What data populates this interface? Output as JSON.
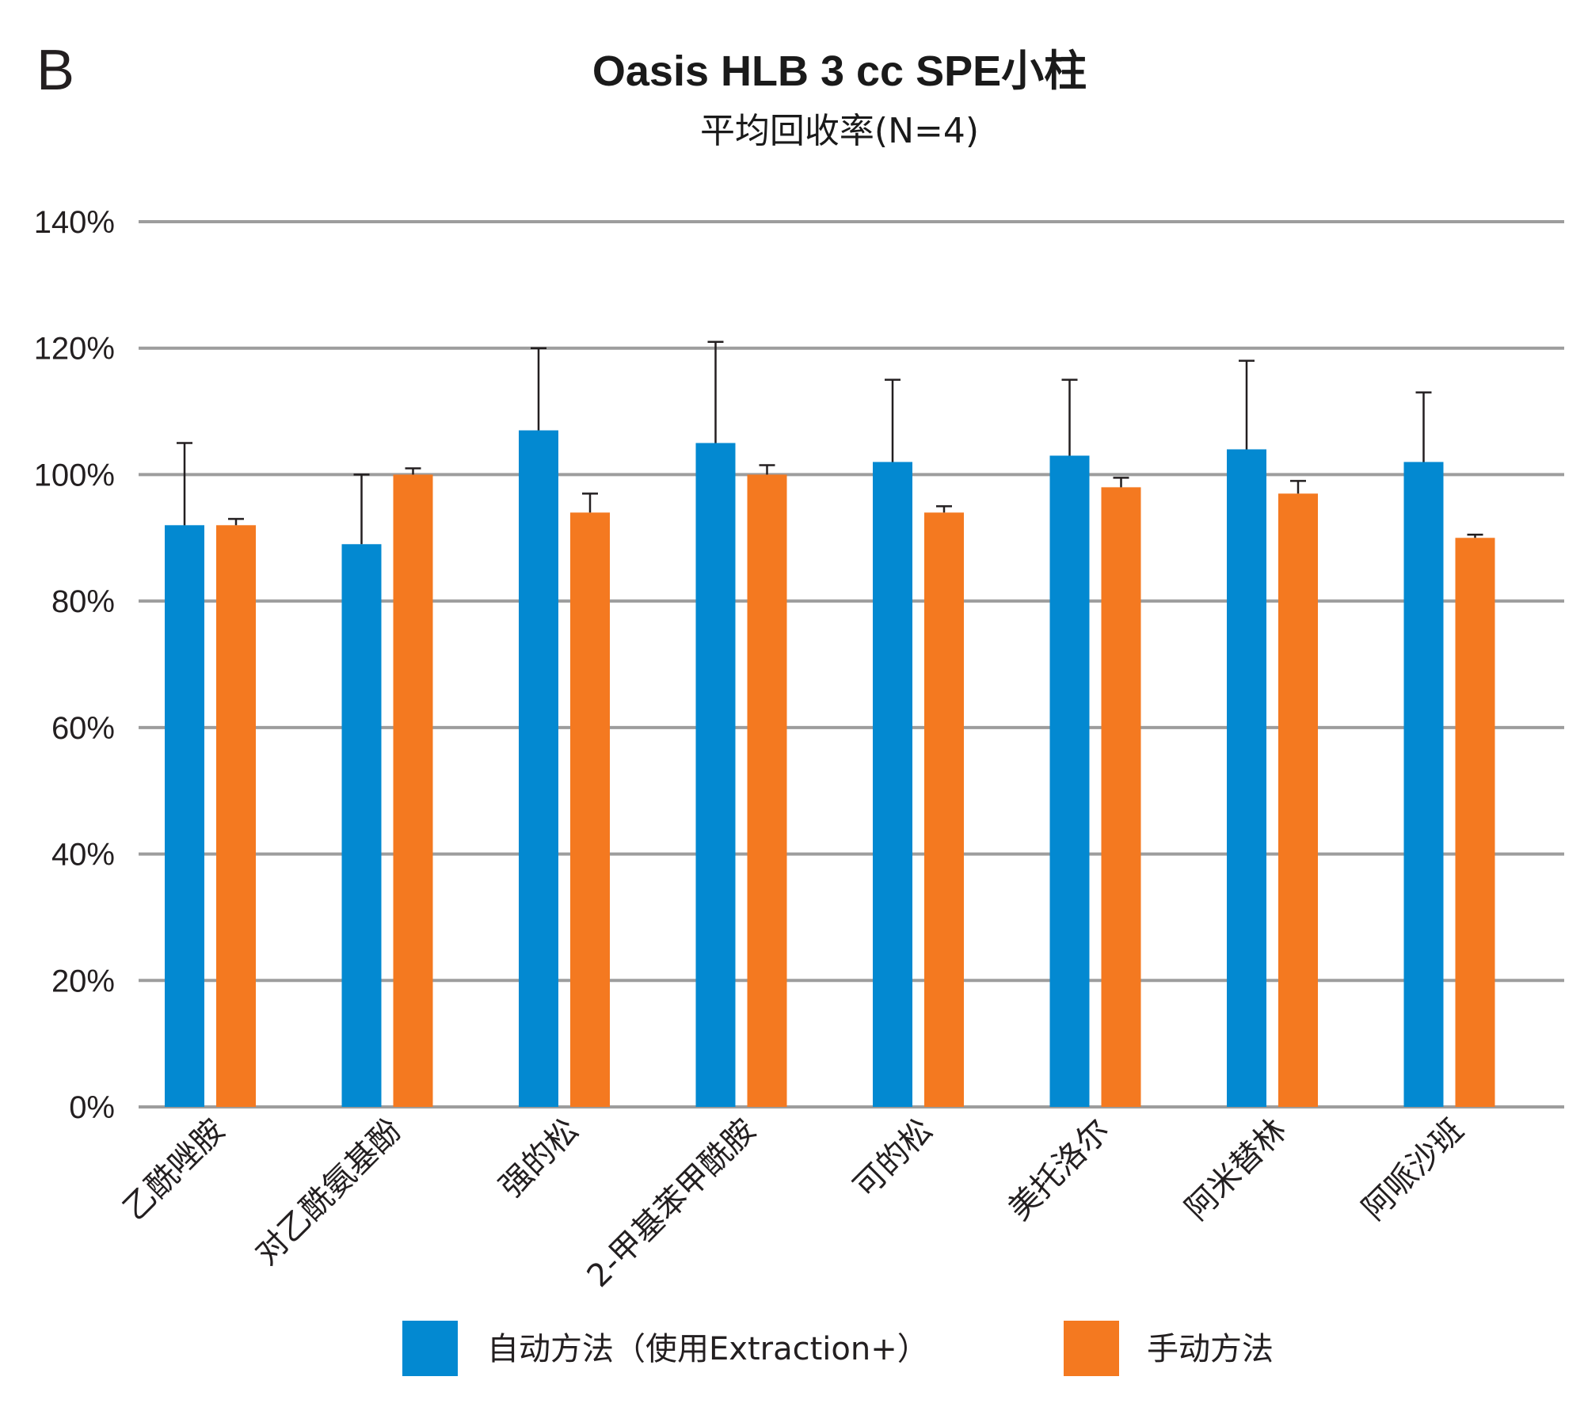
{
  "panel_label": "B",
  "chart_data": {
    "type": "bar",
    "title": "Oasis HLB 3 cc SPE小柱",
    "subtitle": "平均回收率(N=4)",
    "xlabel": "",
    "ylabel": "",
    "ylim": [
      0,
      140
    ],
    "yticks": [
      "0%",
      "20%",
      "40%",
      "60%",
      "80%",
      "100%",
      "120%",
      "140%"
    ],
    "ytick_values": [
      0,
      20,
      40,
      60,
      80,
      100,
      120,
      140
    ],
    "grid": true,
    "legend_position": "bottom",
    "categories": [
      "乙酰唑胺",
      "对乙酰氨基酚",
      "强的松",
      "2-甲基苯甲酰胺",
      "可的松",
      "美托洛尔",
      "阿米替林",
      "阿哌沙班"
    ],
    "series": [
      {
        "name": "自动方法（使用Extraction+）",
        "color": "#0389d1",
        "values": [
          92,
          89,
          107,
          105,
          102,
          103,
          104,
          102
        ],
        "error": [
          13,
          11,
          13,
          16,
          13,
          12,
          14,
          11
        ]
      },
      {
        "name": "手动方法",
        "color": "#f47920",
        "values": [
          92,
          100,
          94,
          100,
          94,
          98,
          97,
          90
        ],
        "error": [
          1,
          1,
          3,
          1.5,
          1,
          1.5,
          2,
          0.5
        ]
      }
    ]
  }
}
